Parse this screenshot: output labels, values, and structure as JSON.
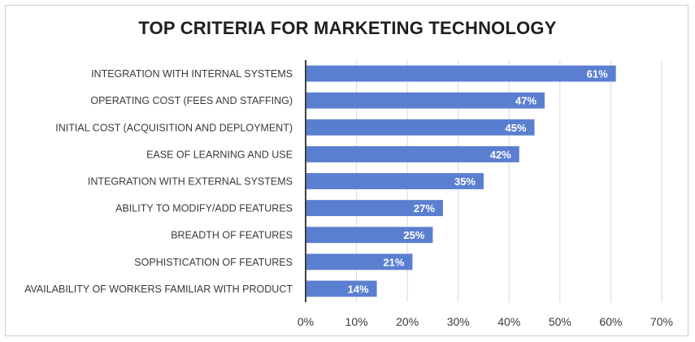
{
  "chart_data": {
    "type": "bar",
    "orientation": "horizontal",
    "title": "TOP CRITERIA FOR MARKETING TECHNOLOGY",
    "categories": [
      "INTEGRATION WITH INTERNAL SYSTEMS",
      "OPERATING COST (FEES AND STAFFING)",
      "INITIAL COST (ACQUISITION AND DEPLOYMENT)",
      "EASE OF LEARNING AND USE",
      "INTEGRATION WITH EXTERNAL SYSTEMS",
      "ABILITY TO MODIFY/ADD FEATURES",
      "BREADTH OF FEATURES",
      "SOPHISTICATION OF FEATURES",
      "AVAILABILITY OF WORKERS FAMILIAR WITH PRODUCT"
    ],
    "values": [
      61,
      47,
      45,
      42,
      35,
      27,
      25,
      21,
      14
    ],
    "data_labels": [
      "61%",
      "47%",
      "45%",
      "42%",
      "35%",
      "27%",
      "25%",
      "21%",
      "14%"
    ],
    "xlim": [
      0,
      70
    ],
    "ticks": [
      0,
      10,
      20,
      30,
      40,
      50,
      60,
      70
    ],
    "tick_labels": [
      "0%",
      "10%",
      "20%",
      "30%",
      "40%",
      "50%",
      "60%",
      "70%"
    ],
    "xlabel": "",
    "ylabel": "",
    "grid": "vertical",
    "legend": "none",
    "bar_color": "#5b7fd0",
    "grid_color": "#d9d9d9",
    "axis_color": "#404040"
  }
}
